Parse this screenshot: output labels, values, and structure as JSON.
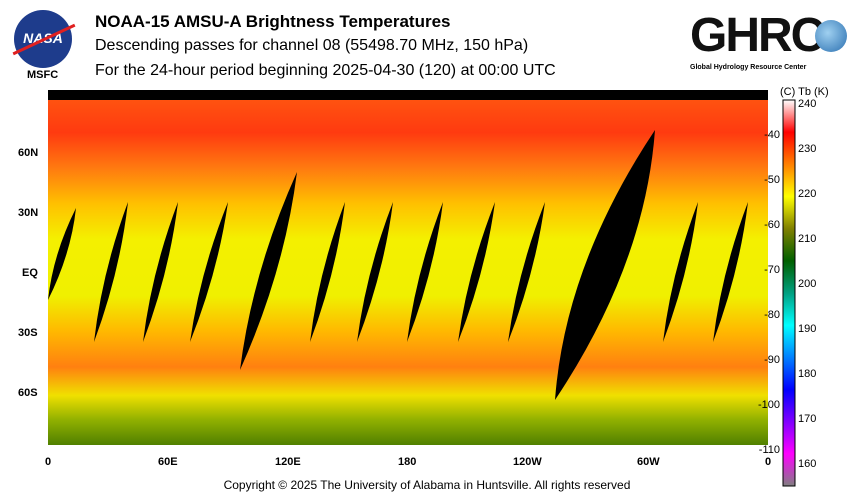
{
  "header": {
    "title": "NOAA-15 AMSU-A Brightness Temperatures",
    "subtitle": "Descending passes for channel 08 (55498.70 MHz, 150 hPa)",
    "period": "For the 24-hour period beginning 2025-04-30 (120) at 00:00 UTC"
  },
  "logos": {
    "left_text": "NASA",
    "left_caption": "MSFC",
    "right_text": "GHRC",
    "right_caption": "Global Hydrology Resource Center"
  },
  "map": {
    "lat_labels": [
      "60N",
      "30N",
      "EQ",
      "30S",
      "60S"
    ],
    "lon_labels": [
      "0",
      "60E",
      "120E",
      "180",
      "120W",
      "60W",
      "0"
    ]
  },
  "colorbar": {
    "header": "(C)  Tb  (K)",
    "kelvin_labels": [
      "240",
      "230",
      "220",
      "210",
      "200",
      "190",
      "180",
      "170",
      "160"
    ],
    "celsius_labels": [
      "-40",
      "-50",
      "-60",
      "-70",
      "-80",
      "-90",
      "-100",
      "-110"
    ],
    "kelvin_range": [
      155,
      240
    ],
    "colors": [
      "#808080",
      "#ff00ff",
      "#8000ff",
      "#0000ff",
      "#0080ff",
      "#00ffff",
      "#00a080",
      "#006000",
      "#808000",
      "#ffff00",
      "#ff8000",
      "#ff0000",
      "#ffffff"
    ]
  },
  "footer": {
    "copyright": "Copyright © 2025 The University of Alabama in Huntsville.  All rights reserved"
  }
}
